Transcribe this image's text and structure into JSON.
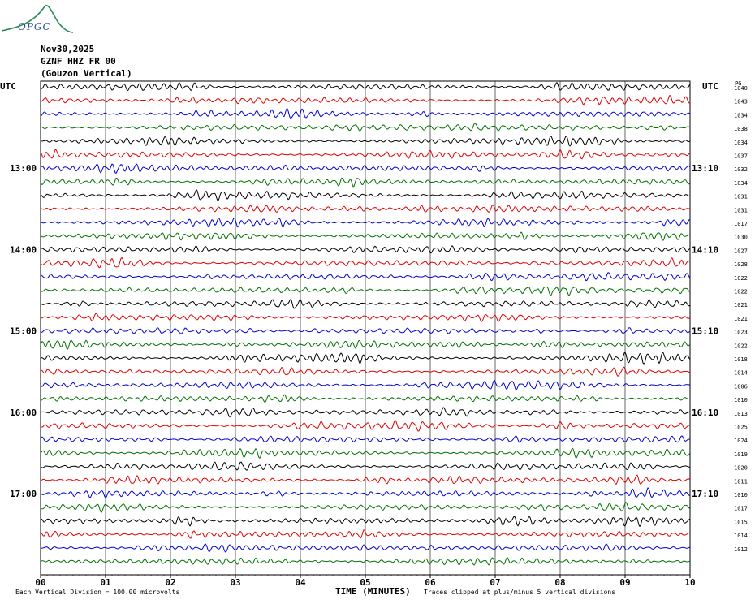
{
  "logo": {
    "text": "OPGC"
  },
  "header": {
    "date": "Nov30,2025",
    "station": "GZNF HHZ FR 00",
    "component": "(Gouzon Vertical)"
  },
  "left_axis_label": "UTC",
  "right_axis_label": "UTC",
  "rms_label": "PG",
  "footer": {
    "left": "Each Vertical Division =  100.00 microvolts",
    "right": "Traces clipped at plus/minus 5 vertical divisions"
  },
  "colors": {
    "trace_cycle": [
      "#000000",
      "#e00000",
      "#0000d0",
      "#007000"
    ],
    "grid": "#000000"
  },
  "chart_data": {
    "type": "line",
    "title": "",
    "xlabel": "TIME (MINUTES)",
    "ylabel": "",
    "xlim": [
      0,
      10
    ],
    "x_ticks": [
      "00",
      "01",
      "02",
      "03",
      "04",
      "05",
      "06",
      "07",
      "08",
      "09",
      "10"
    ],
    "grid": true,
    "trace_count": 36,
    "left_time_labels": [
      {
        "trace": 6,
        "label": "13:00"
      },
      {
        "trace": 12,
        "label": "14:00"
      },
      {
        "trace": 18,
        "label": "15:00"
      },
      {
        "trace": 24,
        "label": "16:00"
      },
      {
        "trace": 30,
        "label": "17:00"
      }
    ],
    "right_time_labels": [
      {
        "trace": 6,
        "label": "13:10"
      },
      {
        "trace": 12,
        "label": "14:10"
      },
      {
        "trace": 18,
        "label": "15:10"
      },
      {
        "trace": 24,
        "label": "16:10"
      },
      {
        "trace": 30,
        "label": "17:10"
      }
    ],
    "trace_values": [
      "1040",
      "1043",
      "1034",
      "1038",
      "1034",
      "1037",
      "1032",
      "1034",
      "1031",
      "1031",
      "1017",
      "1030",
      "1027",
      "1028",
      "1022",
      "1022",
      "1021",
      "1021",
      "1023",
      "1022",
      "1018",
      "1014",
      "1006",
      "1010",
      "1013",
      "1025",
      "1024",
      "1019",
      "1020",
      "1011",
      "1010",
      "1017",
      "1015",
      "1014",
      "1012"
    ]
  }
}
